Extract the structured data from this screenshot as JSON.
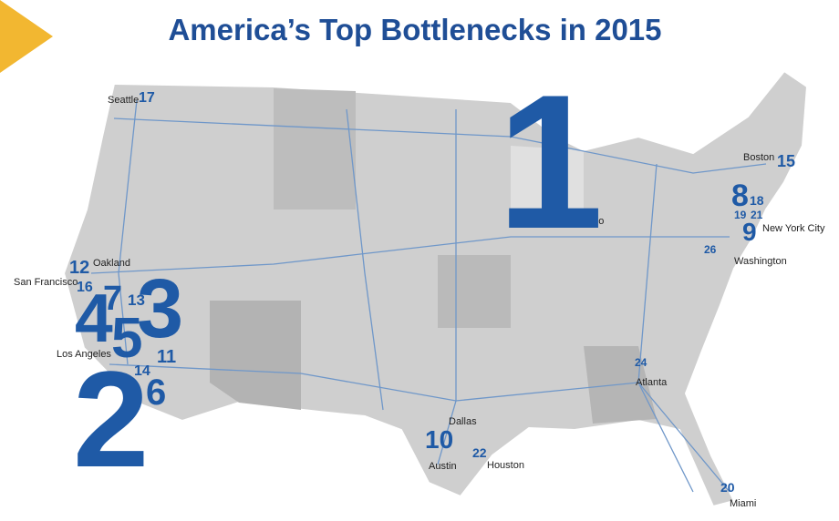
{
  "title": "America’s Top Bottlenecks in 2015",
  "cities": [
    "Seattle",
    "Chicago",
    "Boston",
    "New York City",
    "Washington",
    "San Francisco",
    "Oakland",
    "Los Angeles",
    "Dallas",
    "Austin",
    "Houston",
    "Atlanta",
    "Miami"
  ],
  "ranks": [
    "1",
    "2",
    "3",
    "4",
    "5",
    "6",
    "7",
    "8",
    "9",
    "10",
    "11",
    "12",
    "13",
    "14",
    "15",
    "16",
    "17",
    "18",
    "19",
    "20",
    "21",
    "22",
    "24",
    "26"
  ]
}
